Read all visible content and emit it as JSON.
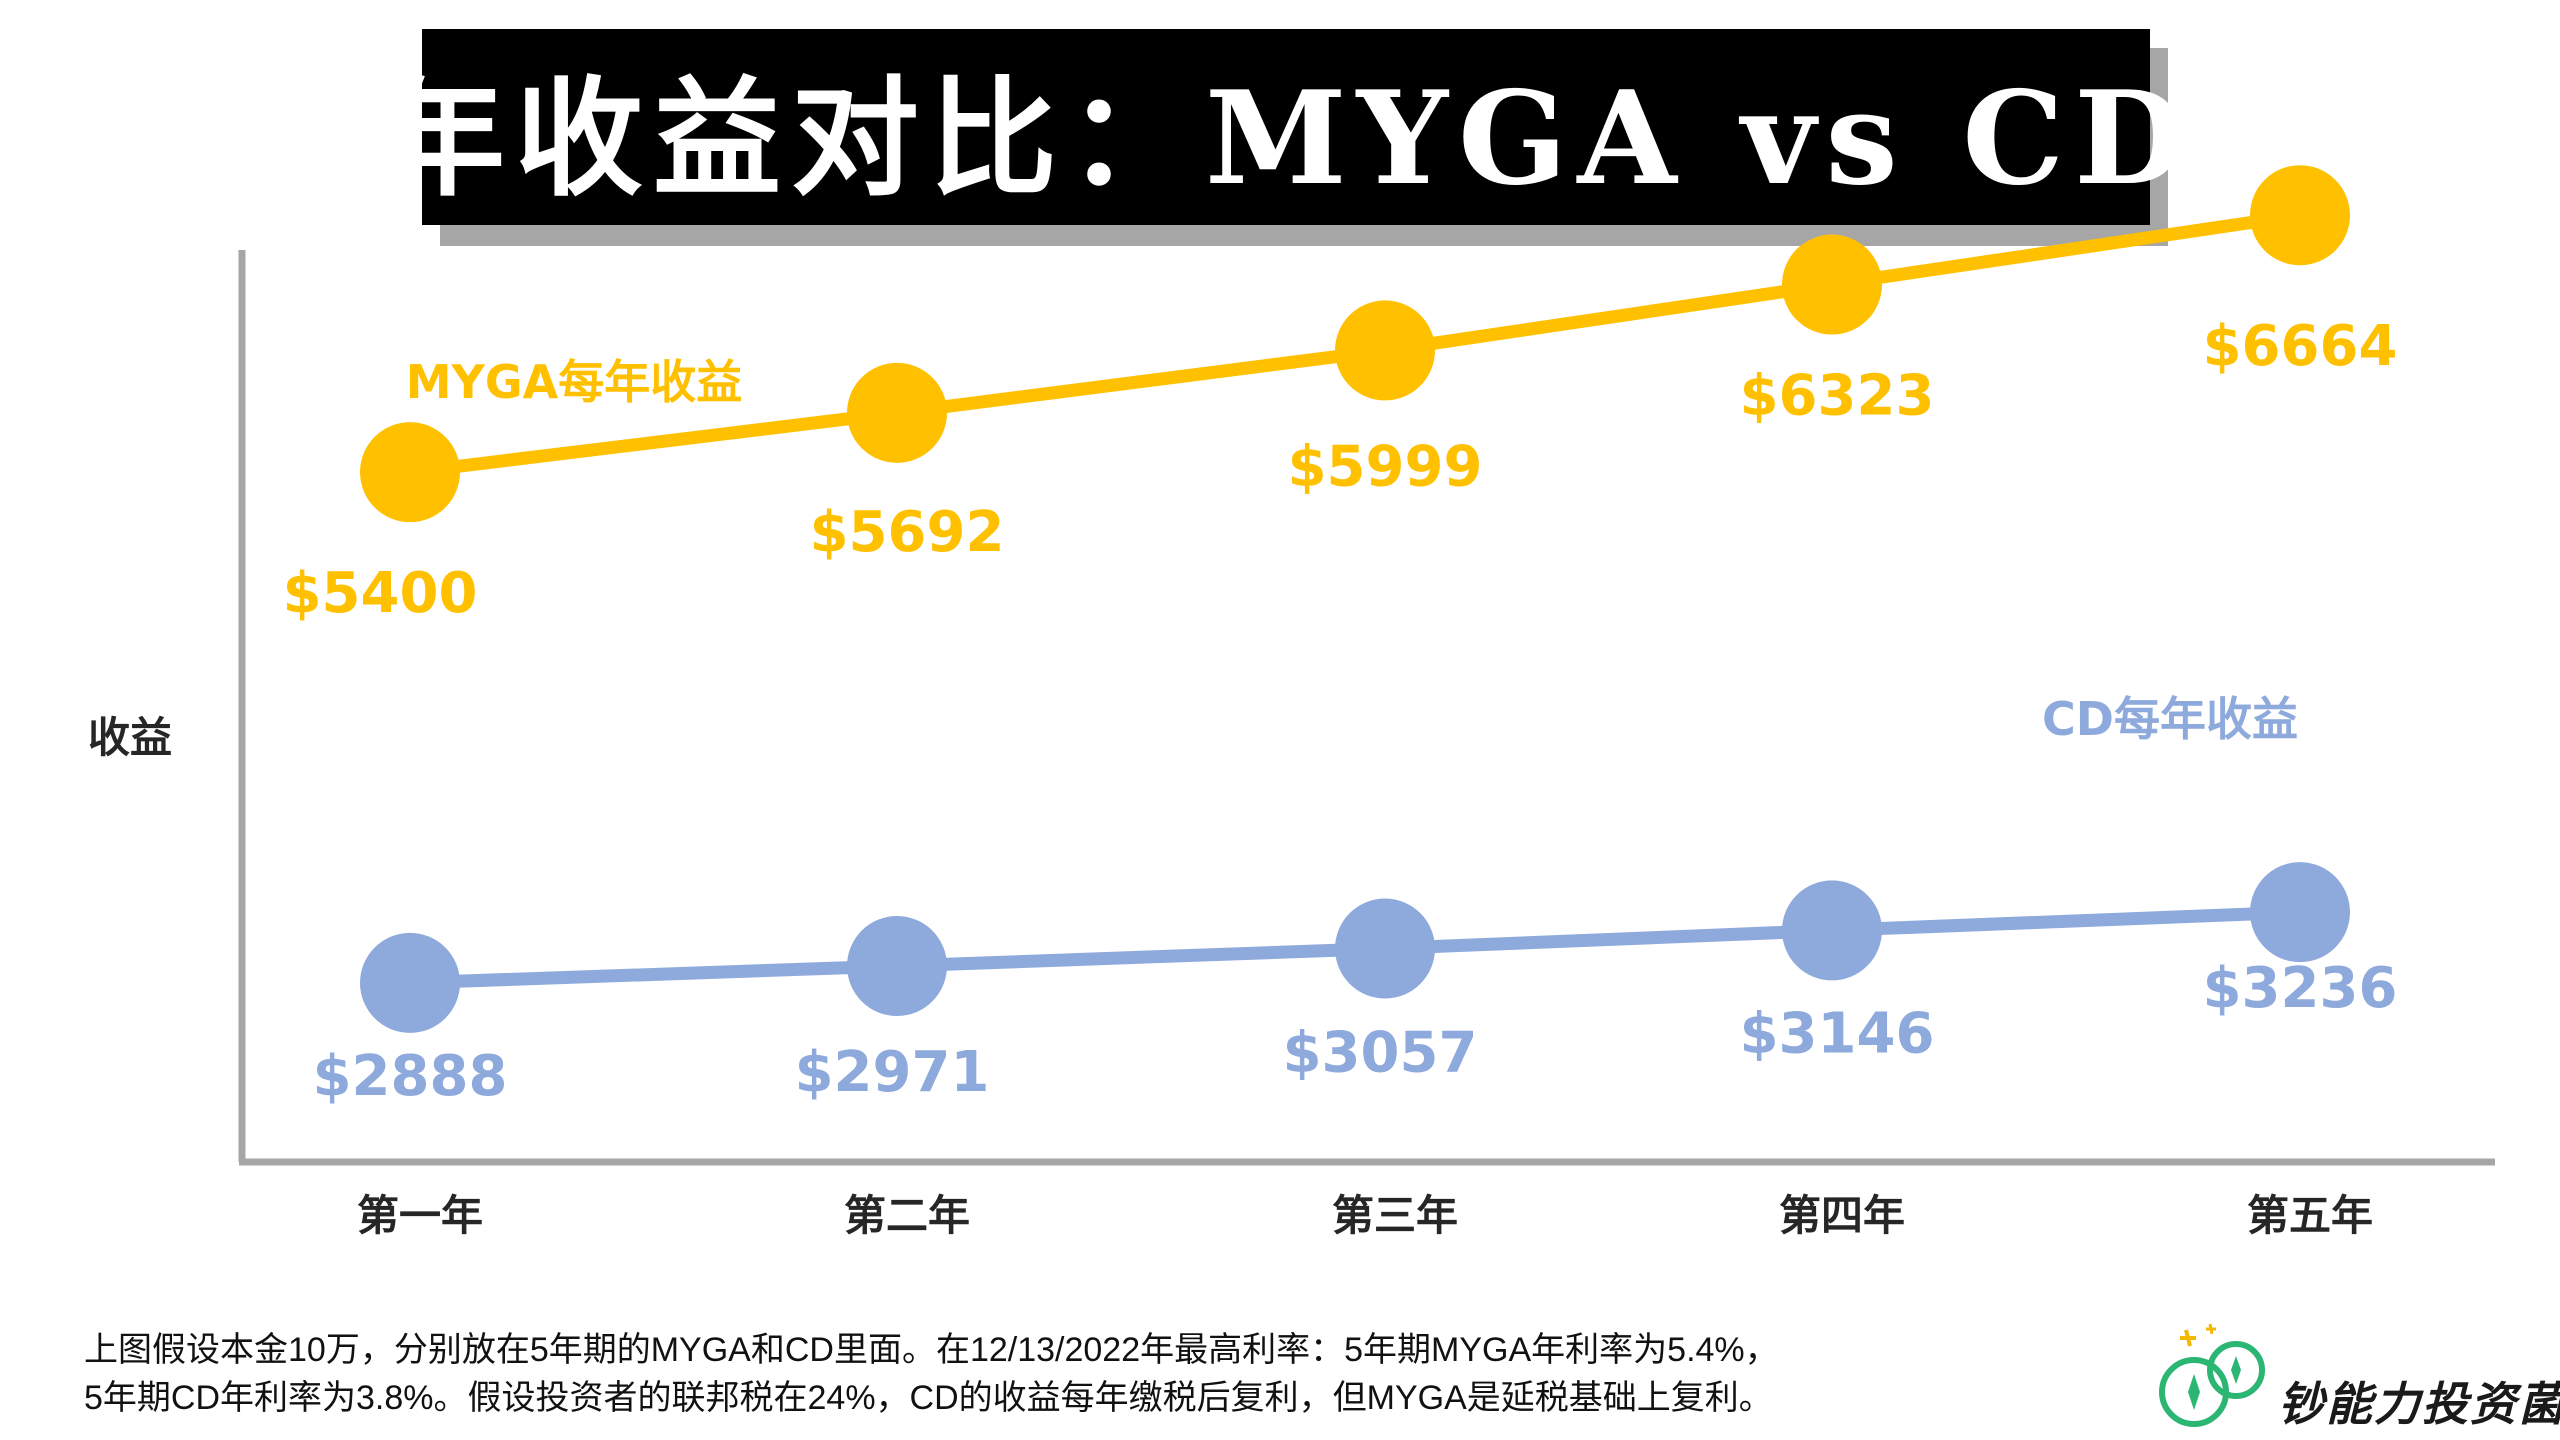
{
  "title": "年收益对比：MYGA vs CD",
  "colors": {
    "myga": "#FFC000",
    "cd": "#8EA9DB",
    "axis": "#a6a6a6",
    "text": "#262626",
    "logo": "#2BB673"
  },
  "chart_data": {
    "type": "line",
    "categories": [
      "第一年",
      "第二年",
      "第三年",
      "第四年",
      "第五年"
    ],
    "ylabel": "收益",
    "xlabel": "",
    "ylim": [
      0,
      8000
    ],
    "grid": false,
    "series": [
      {
        "name": "MYGA每年收益",
        "values": [
          5400,
          5692,
          5999,
          6323,
          6664
        ],
        "labels": [
          "$5400",
          "$5692",
          "$5999",
          "$6323",
          "$6664"
        ],
        "color": "#FFC000"
      },
      {
        "name": "CD每年收益",
        "values": [
          2888,
          2971,
          3057,
          3146,
          3236
        ],
        "labels": [
          "$2888",
          "$2971",
          "$3057",
          "$3146",
          "$3236"
        ],
        "color": "#8EA9DB"
      }
    ]
  },
  "footnote": {
    "line1": "上图假设本金10万，分别放在5年期的MYGA和CD里面。在12/13/2022年最高利率：5年期MYGA年利率为5.4%，",
    "line2": "5年期CD年利率为3.8%。假设投资者的联邦税在24%，CD的收益每年缴税后复利，但MYGA是延税基础上复利。"
  },
  "brand": {
    "name": "钞能力投资菌",
    "logo_icon": "coin-bag-icon"
  }
}
